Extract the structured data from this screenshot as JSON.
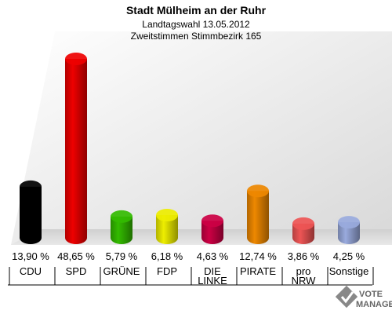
{
  "chart_data": {
    "type": "bar",
    "title": "Stadt Mülheim an der Ruhr",
    "subtitle_1": "Landtagswahl 13.05.2012",
    "subtitle_2": "Zweitstimmen Stimmbezirk 165",
    "categories": [
      "CDU",
      "SPD",
      "GRÜNE",
      "FDP",
      "DIE LINKE",
      "PIRATE",
      "pro NRW",
      "Sonstige"
    ],
    "value_labels": [
      "13,90 %",
      "48,65 %",
      "5,79 %",
      "6,18 %",
      "4,63 %",
      "12,74 %",
      "3,86 %",
      "4,25 %"
    ],
    "values": [
      13.9,
      48.65,
      5.79,
      6.18,
      4.63,
      12.74,
      3.86,
      4.25
    ],
    "colors": [
      "#000000",
      "#ee0000",
      "#33bb00",
      "#eeee00",
      "#cc0044",
      "#ee8800",
      "#ee5555",
      "#99aadd"
    ],
    "unit": "%",
    "ylim": [
      0,
      50
    ],
    "legend": "none",
    "grid": false
  },
  "watermark": {
    "line1": "VOTE",
    "line2": "MANAGER"
  }
}
